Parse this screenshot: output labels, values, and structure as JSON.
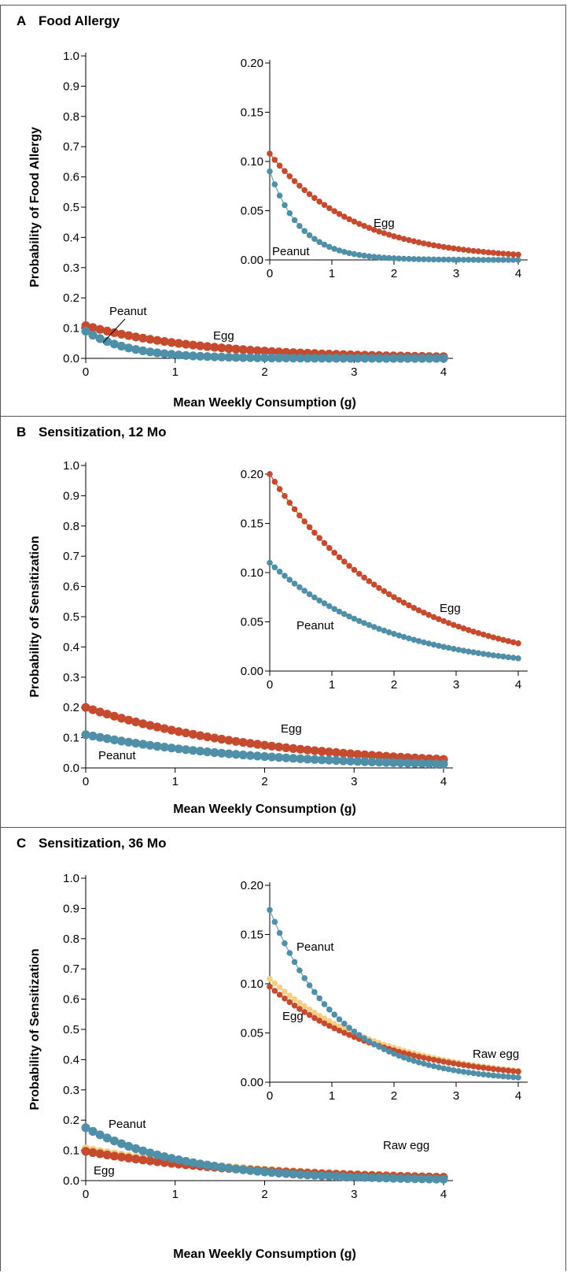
{
  "colors": {
    "peanut": "#4f8fa8",
    "peanut_line": "#6d9eb3",
    "egg": "#c64b2e",
    "raw_egg": "#f7cf84",
    "raw_egg_line": "#e8b770",
    "axis": "#000000",
    "border": "#555555"
  },
  "panels": [
    {
      "letter": "A",
      "title": "Food Allergy",
      "main": {
        "ylabel": "Probability of Food Allergy",
        "xlabel": "Mean Weekly Consumption (g)",
        "xticks": [
          "0",
          "1",
          "2",
          "3",
          "4"
        ],
        "yticks": [
          "0.0",
          "0.1",
          "0.2",
          "0.3",
          "0.4",
          "0.5",
          "0.6",
          "0.7",
          "0.8",
          "0.9",
          "1.0"
        ],
        "labels": {
          "peanut": "Peanut",
          "egg": "Egg"
        }
      },
      "inset": {
        "xticks": [
          "0",
          "1",
          "2",
          "3",
          "4"
        ],
        "yticks": [
          "0.00",
          "0.05",
          "0.10",
          "0.15",
          "0.20"
        ],
        "labels": {
          "peanut": "Peanut",
          "egg": "Egg"
        }
      }
    },
    {
      "letter": "B",
      "title": "Sensitization, 12 Mo",
      "main": {
        "ylabel": "Probability of Sensitization",
        "xlabel": "Mean Weekly Consumption (g)",
        "xticks": [
          "0",
          "1",
          "2",
          "3",
          "4"
        ],
        "yticks": [
          "0.0",
          "0.1",
          "0.2",
          "0.3",
          "0.4",
          "0.5",
          "0.6",
          "0.7",
          "0.8",
          "0.9",
          "1.0"
        ],
        "labels": {
          "peanut": "Peanut",
          "egg": "Egg"
        }
      },
      "inset": {
        "xticks": [
          "0",
          "1",
          "2",
          "3",
          "4"
        ],
        "yticks": [
          "0.00",
          "0.05",
          "0.10",
          "0.15",
          "0.20"
        ],
        "labels": {
          "peanut": "Peanut",
          "egg": "Egg"
        }
      }
    },
    {
      "letter": "C",
      "title": "Sensitization, 36 Mo",
      "main": {
        "ylabel": "Probability of Sensitization",
        "xlabel": "Mean Weekly Consumption (g)",
        "xticks": [
          "0",
          "1",
          "2",
          "3",
          "4"
        ],
        "yticks": [
          "0.0",
          "0.1",
          "0.2",
          "0.3",
          "0.4",
          "0.5",
          "0.6",
          "0.7",
          "0.8",
          "0.9",
          "1.0"
        ],
        "labels": {
          "peanut": "Peanut",
          "egg": "Egg",
          "raw_egg": "Raw egg"
        }
      },
      "inset": {
        "xticks": [
          "0",
          "1",
          "2",
          "3",
          "4"
        ],
        "yticks": [
          "0.00",
          "0.05",
          "0.10",
          "0.15",
          "0.20"
        ],
        "labels": {
          "peanut": "Peanut",
          "egg": "Egg",
          "raw_egg": "Raw egg"
        }
      }
    }
  ],
  "chart_data": [
    {
      "type": "scatter",
      "panel": "A",
      "title": "Food Allergy",
      "xlabel": "Mean Weekly Consumption (g)",
      "ylabel": "Probability of Food Allergy",
      "xlim": [
        0,
        4
      ],
      "ylim": [
        0,
        1
      ],
      "inset_ylim": [
        0,
        0.2
      ],
      "grid": false,
      "series": [
        {
          "name": "Egg",
          "color_key": "egg",
          "model": "exponential",
          "y0": 0.108,
          "k": 0.75,
          "n_points": 51
        },
        {
          "name": "Peanut",
          "color_key": "peanut",
          "model": "exponential",
          "y0": 0.09,
          "k": 2.0,
          "n_points": 51
        }
      ]
    },
    {
      "type": "scatter",
      "panel": "B",
      "title": "Sensitization, 12 Mo",
      "xlabel": "Mean Weekly Consumption (g)",
      "ylabel": "Probability of Sensitization",
      "xlim": [
        0,
        4
      ],
      "ylim": [
        0,
        1
      ],
      "inset_ylim": [
        0,
        0.2
      ],
      "grid": false,
      "series": [
        {
          "name": "Egg",
          "color_key": "egg",
          "model": "exponential",
          "y0": 0.2,
          "k": 0.49,
          "n_points": 51
        },
        {
          "name": "Peanut",
          "color_key": "peanut",
          "model": "exponential",
          "y0": 0.11,
          "k": 0.535,
          "n_points": 51
        }
      ]
    },
    {
      "type": "scatter",
      "panel": "C",
      "title": "Sensitization, 36 Mo",
      "xlabel": "Mean Weekly Consumption (g)",
      "ylabel": "Probability of Sensitization",
      "xlim": [
        0,
        4
      ],
      "ylim": [
        0,
        1
      ],
      "inset_ylim": [
        0,
        0.2
      ],
      "grid": false,
      "series": [
        {
          "name": "Raw egg",
          "color_key": "raw_egg",
          "model": "exponential",
          "y0": 0.105,
          "k": 0.55,
          "n_points": 51
        },
        {
          "name": "Egg",
          "color_key": "egg",
          "model": "exponential",
          "y0": 0.097,
          "k": 0.55,
          "n_points": 51
        },
        {
          "name": "Peanut",
          "color_key": "peanut",
          "model": "exponential",
          "y0": 0.175,
          "k": 0.9,
          "n_points": 51
        }
      ]
    }
  ]
}
